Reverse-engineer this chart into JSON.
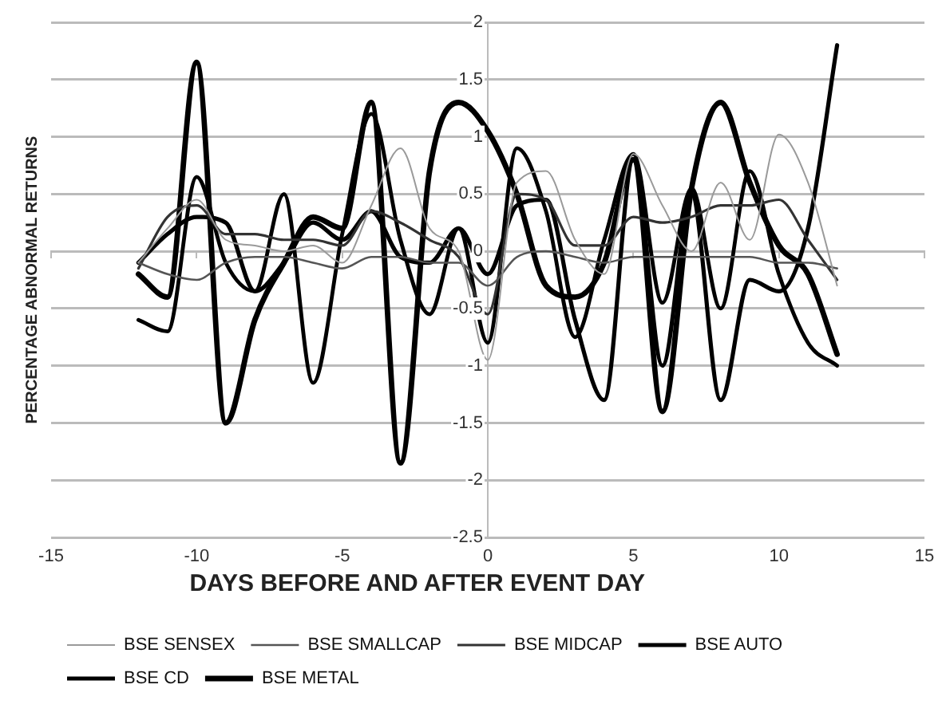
{
  "chart_data": {
    "type": "line",
    "xlabel": "DAYS BEFORE AND AFTER EVENT DAY",
    "ylabel": "PERCENTAGE ABNORMAL RETURNS",
    "x": [
      -12,
      -11,
      -10,
      -9,
      -8,
      -7,
      -6,
      -5,
      -4,
      -3,
      -2,
      -1,
      0,
      1,
      2,
      3,
      4,
      5,
      6,
      7,
      8,
      9,
      10,
      11,
      12
    ],
    "xlim": [
      -15,
      15
    ],
    "xticks": [
      -15,
      -10,
      -5,
      0,
      5,
      10,
      15
    ],
    "ylim": [
      -2.5,
      2
    ],
    "yticks": [
      -2.5,
      -2,
      -1.5,
      -1,
      -0.5,
      0,
      0.5,
      1,
      1.5,
      2
    ],
    "grid": "y",
    "legend": "bottom",
    "marker": "none",
    "line_style": "solid",
    "series": [
      {
        "name": "BSE SENSEX",
        "color": "#9a9a9a",
        "values": [
          -0.1,
          0.2,
          0.45,
          0.1,
          0.05,
          0,
          0.05,
          -0.1,
          0.4,
          0.9,
          0.2,
          0,
          -0.95,
          0.6,
          0.7,
          0.1,
          -0.2,
          0.85,
          0.4,
          0,
          0.6,
          0.1,
          1.02,
          0.6,
          -0.3
        ]
      },
      {
        "name": "BSE SMALLCAP",
        "color": "#555555",
        "values": [
          -0.1,
          -0.2,
          -0.25,
          -0.1,
          -0.05,
          -0.05,
          -0.1,
          -0.15,
          -0.05,
          -0.05,
          -0.1,
          -0.1,
          -0.3,
          -0.05,
          0,
          -0.05,
          -0.1,
          -0.05,
          -0.05,
          -0.05,
          -0.05,
          -0.05,
          -0.1,
          -0.1,
          -0.15
        ]
      },
      {
        "name": "BSE MIDCAP",
        "color": "#333333",
        "values": [
          -0.15,
          0.3,
          0.4,
          0.15,
          0.15,
          0.1,
          0.1,
          0.05,
          0.35,
          0.25,
          0.1,
          -0.05,
          -0.55,
          0.5,
          0.45,
          0.05,
          0.05,
          0.3,
          0.25,
          0.3,
          0.4,
          0.4,
          0.45,
          0.1,
          -0.25
        ]
      },
      {
        "name": "BSE AUTO",
        "color": "#000000",
        "values": [
          -0.6,
          -0.7,
          0.65,
          -0.1,
          -0.35,
          0.5,
          -1.15,
          0.15,
          1.2,
          0.1,
          -0.55,
          0.2,
          -0.8,
          0.9,
          0.35,
          -0.75,
          0.1,
          0.85,
          -0.45,
          0.55,
          -0.5,
          0.7,
          -0.2,
          -0.8,
          -1
        ]
      },
      {
        "name": "BSE CD",
        "color": "#000000",
        "values": [
          -0.1,
          0.15,
          0.3,
          0.25,
          -0.35,
          -0.1,
          0.25,
          0.1,
          0.35,
          -0.05,
          -0.1,
          0.2,
          -0.2,
          0.4,
          0.45,
          -0.6,
          -1.3,
          0.8,
          -1,
          0.5,
          -1.3,
          -0.25,
          -0.35,
          0.2,
          1.8
        ]
      },
      {
        "name": "BSE METAL",
        "color": "#000000",
        "values": [
          -0.2,
          -0.4,
          1.65,
          -1.5,
          -0.6,
          -0.1,
          0.3,
          0.2,
          1.3,
          -1.85,
          0.7,
          1.3,
          1.05,
          0.5,
          -0.3,
          -0.4,
          -0.1,
          0.8,
          -1.4,
          0.55,
          1.3,
          0.6,
          0.05,
          -0.2,
          -0.9
        ]
      }
    ]
  }
}
